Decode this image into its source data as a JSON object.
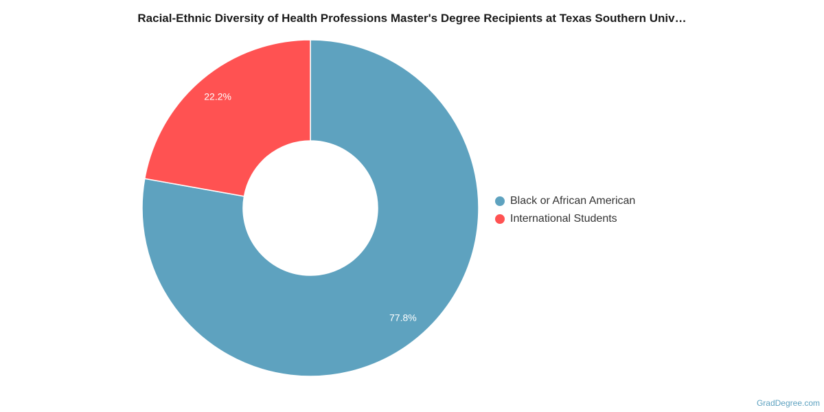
{
  "chart_data": {
    "type": "pie",
    "variant": "donut",
    "title": "Racial-Ethnic Diversity of Health Professions Master's Degree Recipients at Texas Southern Univ…",
    "slices": [
      {
        "name": "Black or African American",
        "value": 77.8,
        "label": "77.8%",
        "color": "#5ea2bf"
      },
      {
        "name": "International Students",
        "value": 22.2,
        "label": "22.2%",
        "color": "#ff5252"
      }
    ],
    "legend_position": "right"
  },
  "credit": "GradDegree.com"
}
